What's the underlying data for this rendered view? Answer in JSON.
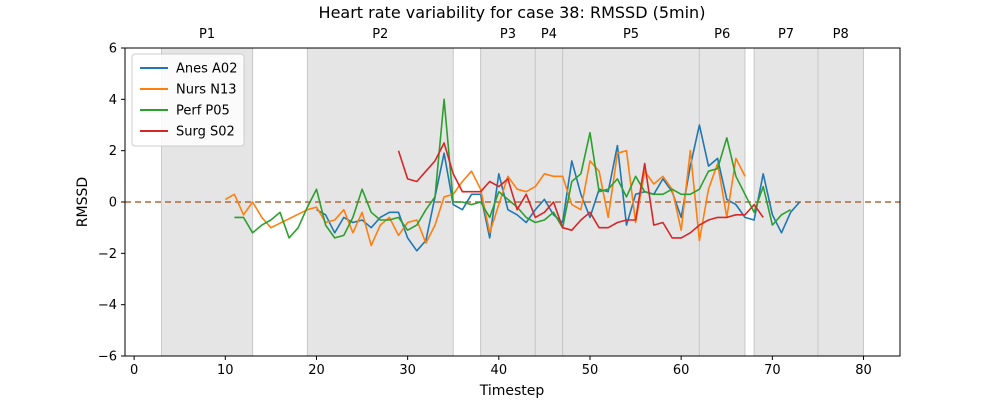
{
  "chart_data": {
    "type": "line",
    "title": "Heart rate variability for case 38: RMSSD (5min)",
    "xlabel": "Timestep",
    "ylabel": "RMSSD",
    "xlim": [
      -1,
      84
    ],
    "ylim": [
      -6,
      6
    ],
    "xticks": [
      0,
      10,
      20,
      30,
      40,
      50,
      60,
      70,
      80
    ],
    "yticks": [
      -6,
      -4,
      -2,
      0,
      2,
      4,
      6
    ],
    "grid": false,
    "legend_position": "top-left",
    "baseline": {
      "y": 0,
      "color": "#b06a3c",
      "style": "dashed"
    },
    "phases": [
      {
        "label": "P1",
        "start": 3,
        "end": 13
      },
      {
        "label": "P2",
        "start": 19,
        "end": 35
      },
      {
        "label": "P3",
        "start": 38,
        "end": 44
      },
      {
        "label": "P4",
        "start": 44,
        "end": 47
      },
      {
        "label": "P5",
        "start": 47,
        "end": 62
      },
      {
        "label": "P6",
        "start": 62,
        "end": 67
      },
      {
        "label": "P7",
        "start": 68,
        "end": 75
      },
      {
        "label": "P8",
        "start": 75,
        "end": 80
      }
    ],
    "series": [
      {
        "name": "Anes A02",
        "color": "#1f77b4",
        "x": [
          20,
          21,
          22,
          23,
          24,
          25,
          26,
          27,
          28,
          29,
          30,
          31,
          32,
          33,
          34,
          35,
          36,
          37,
          38,
          39,
          40,
          41,
          42,
          43,
          44,
          45,
          46,
          47,
          48,
          49,
          50,
          51,
          52,
          53,
          54,
          55,
          56,
          57,
          58,
          59,
          60,
          61,
          62,
          63,
          64,
          65,
          66,
          67,
          68,
          69,
          70,
          71,
          72,
          73
        ],
        "y": [
          -0.3,
          -0.5,
          -1.2,
          -0.6,
          -0.8,
          -0.7,
          -1.0,
          -0.6,
          -0.4,
          -0.4,
          -1.4,
          -1.9,
          -1.5,
          0.2,
          1.9,
          -0.1,
          -0.3,
          0.3,
          0.3,
          -1.4,
          1.1,
          -0.3,
          -0.5,
          -0.8,
          -0.3,
          0.1,
          -0.5,
          -0.8,
          1.6,
          0.3,
          -0.6,
          0.5,
          0.4,
          2.2,
          -0.9,
          0.3,
          0.4,
          0.3,
          0.9,
          0.4,
          -0.6,
          1.4,
          3.0,
          1.4,
          1.7,
          0.1,
          -0.1,
          -0.6,
          -0.7,
          1.1,
          -0.5,
          -1.2,
          -0.4,
          0.0
        ]
      },
      {
        "name": "Nurs N13",
        "color": "#ff7f0e",
        "x": [
          10,
          11,
          12,
          13,
          14,
          15,
          19,
          20,
          21,
          22,
          23,
          24,
          25,
          26,
          27,
          28,
          29,
          30,
          31,
          32,
          33,
          34,
          35,
          36,
          37,
          38,
          39,
          40,
          41,
          42,
          43,
          44,
          45,
          46,
          47,
          48,
          49,
          50,
          51,
          52,
          53,
          54,
          55,
          56,
          57,
          58,
          59,
          60,
          61,
          62,
          63,
          64,
          65,
          66,
          67
        ],
        "y": [
          0.1,
          0.3,
          -0.5,
          0.0,
          -0.6,
          -1.0,
          -0.3,
          -0.2,
          -0.8,
          -0.7,
          -0.3,
          -1.2,
          -0.4,
          -1.7,
          -0.9,
          -0.6,
          -1.3,
          -0.8,
          -0.7,
          -1.6,
          -0.9,
          0.2,
          0.3,
          0.8,
          1.2,
          0.5,
          -1.2,
          -0.1,
          1.0,
          0.5,
          0.4,
          0.6,
          1.1,
          1.0,
          1.0,
          -0.1,
          -0.3,
          1.6,
          1.2,
          -0.6,
          1.9,
          2.0,
          -0.8,
          1.2,
          0.7,
          1.0,
          0.5,
          -1.1,
          2.0,
          -1.5,
          0.5,
          1.5,
          -0.6,
          1.7,
          1.0
        ]
      },
      {
        "name": "Perf P05",
        "color": "#2ca02c",
        "x": [
          11,
          12,
          13,
          14,
          15,
          16,
          17,
          18,
          19,
          20,
          21,
          22,
          23,
          24,
          25,
          26,
          27,
          28,
          29,
          30,
          31,
          32,
          33,
          34,
          35,
          36,
          37,
          38,
          39,
          40,
          41,
          42,
          43,
          44,
          45,
          46,
          47,
          48,
          49,
          50,
          51,
          52,
          53,
          54,
          55,
          56,
          57,
          58,
          59,
          60,
          61,
          62,
          63,
          64,
          65,
          66,
          67,
          68,
          69,
          70,
          71,
          72
        ],
        "y": [
          -0.6,
          -0.6,
          -1.2,
          -0.9,
          -0.7,
          -0.4,
          -1.4,
          -1.0,
          -0.2,
          0.5,
          -0.9,
          -1.4,
          -1.3,
          -0.6,
          0.5,
          -0.4,
          -0.7,
          -0.7,
          -0.6,
          -1.1,
          -0.9,
          -0.3,
          0.2,
          4.0,
          0.0,
          0.0,
          -0.1,
          0.0,
          -0.6,
          0.4,
          0.1,
          -0.2,
          -0.6,
          -0.8,
          -0.7,
          -0.4,
          -1.0,
          0.8,
          1.1,
          2.7,
          0.4,
          0.5,
          0.9,
          0.2,
          1.0,
          0.4,
          0.3,
          0.3,
          0.5,
          0.3,
          0.3,
          0.5,
          1.2,
          1.3,
          2.5,
          1.0,
          0.3,
          -0.4,
          0.6,
          -0.9,
          -0.5,
          -0.3
        ]
      },
      {
        "name": "Surg S02",
        "color": "#d62728",
        "x": [
          29,
          30,
          31,
          32,
          33,
          34,
          35,
          36,
          37,
          38,
          39,
          40,
          41,
          42,
          43,
          44,
          45,
          46,
          47,
          48,
          49,
          50,
          51,
          52,
          53,
          54,
          55,
          56,
          57,
          58,
          59,
          60,
          61,
          62,
          63,
          64,
          65,
          66,
          67,
          68,
          69
        ],
        "y": [
          2.0,
          0.9,
          0.8,
          1.2,
          1.6,
          2.3,
          1.1,
          0.4,
          0.4,
          0.4,
          0.8,
          0.6,
          0.9,
          -0.3,
          0.3,
          -0.6,
          -0.4,
          0.0,
          -1.0,
          -1.1,
          -0.7,
          -0.4,
          -1.0,
          -1.0,
          -0.8,
          -0.7,
          -0.7,
          1.5,
          -0.9,
          -0.8,
          -1.4,
          -1.4,
          -1.2,
          -0.9,
          -0.7,
          -0.6,
          -0.6,
          -0.5,
          -0.5,
          -0.1,
          -0.6
        ]
      }
    ]
  }
}
